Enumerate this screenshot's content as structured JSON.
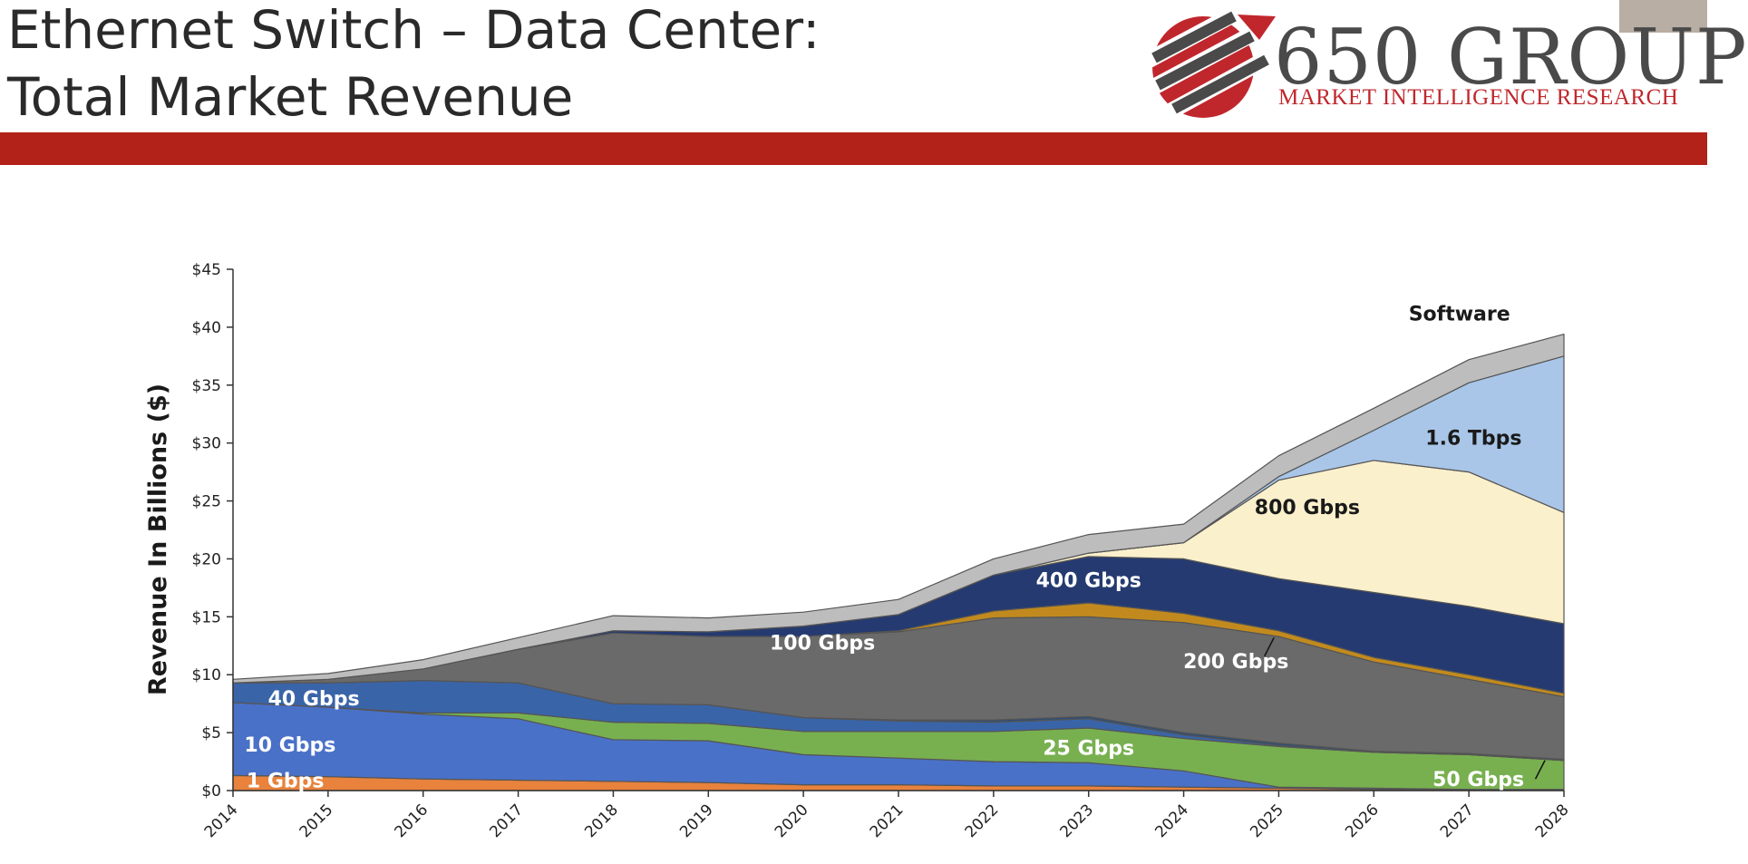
{
  "slide": {
    "title_line1": "Ethernet Switch – Data Center:",
    "title_line2": "Total Market Revenue"
  },
  "logo": {
    "name": "650 GROUP",
    "tagline": "MARKET INTELLIGENCE RESEARCH",
    "colors": {
      "red": "#c0272d",
      "gray": "#4a4a4a"
    }
  },
  "colors": {
    "band": "#b22218",
    "text": "#2a2a2a"
  },
  "chart_data": {
    "type": "area",
    "stacked": true,
    "title": "",
    "xlabel": "",
    "ylabel": "Revenue In Billions ($)",
    "ylim": [
      0,
      45
    ],
    "x": [
      "2014",
      "2015",
      "2016",
      "2017",
      "2018",
      "2019",
      "2020",
      "2021",
      "2022",
      "2023",
      "2024",
      "2025",
      "2026",
      "2027",
      "2028"
    ],
    "y_ticks": [
      "$0",
      "$5",
      "$10",
      "$15",
      "$20",
      "$25",
      "$30",
      "$35",
      "$40",
      "$45"
    ],
    "y_tick_values": [
      0,
      5,
      10,
      15,
      20,
      25,
      30,
      35,
      40,
      45
    ],
    "grid": false,
    "legend": "inline-labels",
    "series": [
      {
        "name": "1 Gbps",
        "color": "#e8823c",
        "label_color": "#ffffff",
        "values": [
          1.3,
          1.2,
          1.0,
          0.9,
          0.8,
          0.7,
          0.5,
          0.5,
          0.4,
          0.4,
          0.3,
          0.2,
          0.1,
          0.1,
          0.1
        ]
      },
      {
        "name": "10 Gbps",
        "color": "#4a71c8",
        "label_color": "#ffffff",
        "values": [
          6.3,
          6.0,
          5.6,
          5.3,
          3.6,
          3.6,
          2.6,
          2.3,
          2.1,
          2.0,
          1.4,
          0.1,
          0.1,
          0.0,
          0.0
        ]
      },
      {
        "name": "25 Gbps",
        "color": "#78b050",
        "label_color": "#ffffff",
        "values": [
          0.0,
          0.0,
          0.1,
          0.5,
          1.5,
          1.5,
          2.0,
          2.3,
          2.6,
          3.0,
          2.8,
          3.5,
          3.1,
          3.0,
          2.5
        ]
      },
      {
        "name": "40 Gbps",
        "color": "#3a64a8",
        "label_color": "#ffffff",
        "values": [
          1.7,
          2.1,
          2.8,
          2.6,
          1.6,
          1.6,
          1.2,
          0.9,
          0.8,
          0.8,
          0.3,
          0.1,
          0.0,
          0.0,
          0.0
        ]
      },
      {
        "name": "50 Gbps",
        "color": "#2c4f78",
        "label_color": "#ffffff",
        "values": [
          0.0,
          0.0,
          0.0,
          0.0,
          0.0,
          0.0,
          0.0,
          0.1,
          0.2,
          0.2,
          0.2,
          0.2,
          0.1,
          0.1,
          0.1
        ]
      },
      {
        "name": "100 Gbps",
        "color": "#6a6a6a",
        "label_color": "#ffffff",
        "values": [
          0.0,
          0.3,
          1.0,
          2.9,
          6.1,
          5.9,
          7.0,
          7.6,
          8.8,
          8.6,
          9.5,
          9.2,
          7.7,
          6.4,
          5.4
        ]
      },
      {
        "name": "200 Gbps",
        "color": "#c28a1e",
        "label_color": "#ffffff",
        "values": [
          0.0,
          0.0,
          0.0,
          0.0,
          0.0,
          0.0,
          0.0,
          0.1,
          0.6,
          1.2,
          0.8,
          0.5,
          0.4,
          0.4,
          0.3
        ]
      },
      {
        "name": "400 Gbps",
        "color": "#253a70",
        "label_color": "#ffffff",
        "values": [
          0.0,
          0.0,
          0.0,
          0.0,
          0.2,
          0.4,
          0.9,
          1.4,
          3.1,
          4.0,
          4.7,
          4.5,
          5.6,
          5.9,
          6.0
        ]
      },
      {
        "name": "800 Gbps",
        "color": "#fbf0cc",
        "label_color": "#1a1a1a",
        "values": [
          0.0,
          0.0,
          0.0,
          0.0,
          0.0,
          0.0,
          0.0,
          0.0,
          0.0,
          0.3,
          1.4,
          8.5,
          11.4,
          11.6,
          9.6
        ]
      },
      {
        "name": "1.6 Tbps",
        "color": "#a9c6e8",
        "label_color": "#1a1a1a",
        "values": [
          0.0,
          0.0,
          0.0,
          0.0,
          0.0,
          0.0,
          0.0,
          0.0,
          0.0,
          0.0,
          0.0,
          0.3,
          2.6,
          7.7,
          13.5
        ]
      },
      {
        "name": "Software",
        "color": "#bdbdbd",
        "label_color": "#1a1a1a",
        "values": [
          0.3,
          0.5,
          0.8,
          1.0,
          1.3,
          1.2,
          1.2,
          1.3,
          1.4,
          1.6,
          1.6,
          1.8,
          1.9,
          2.0,
          1.9
        ]
      }
    ]
  }
}
